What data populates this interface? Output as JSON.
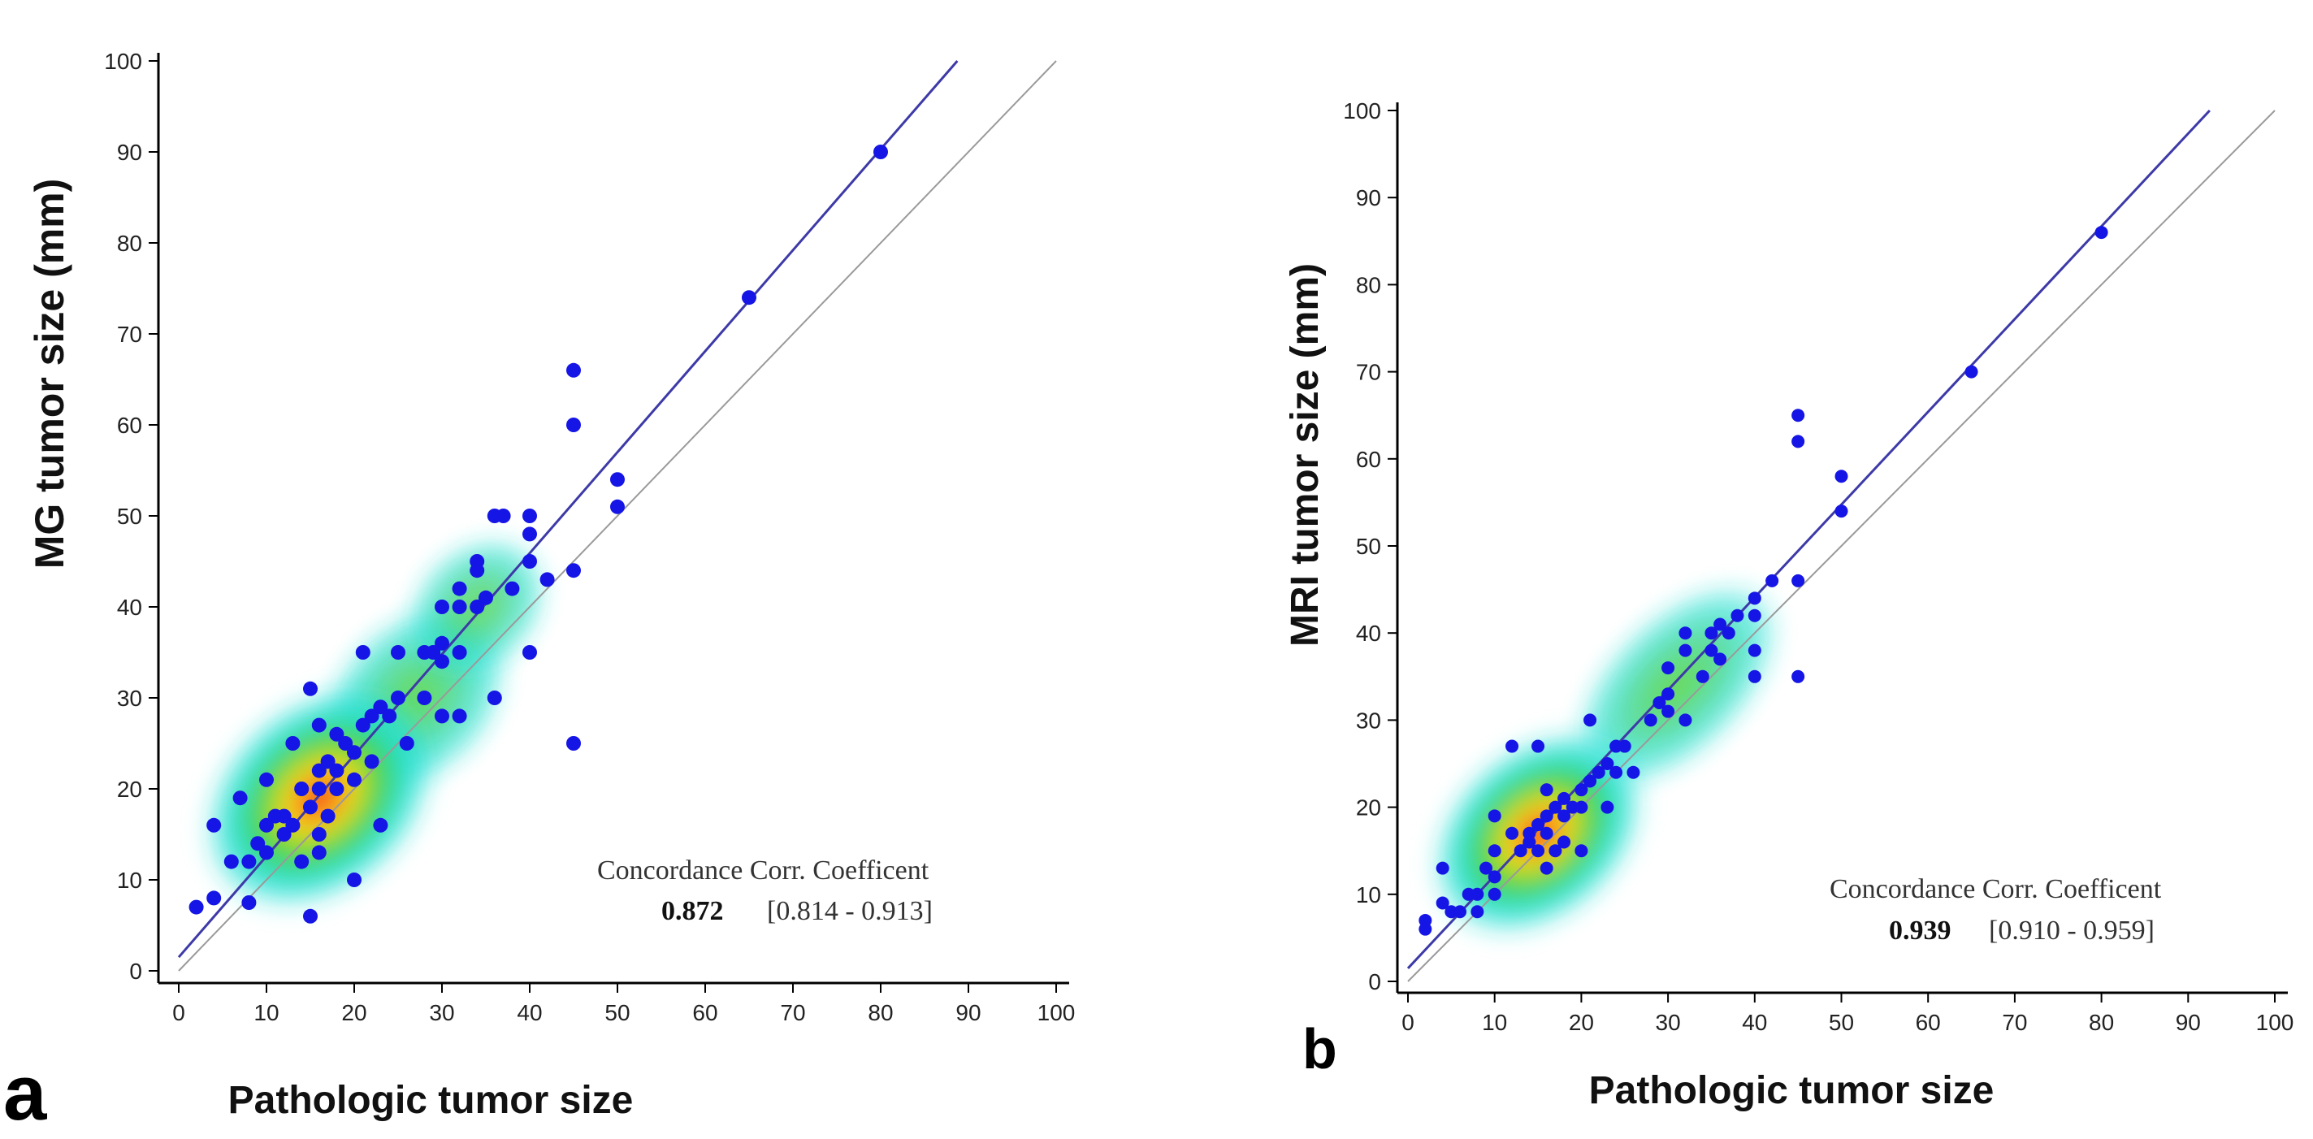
{
  "chart_data": [
    {
      "type": "scatter",
      "panel_label": "a",
      "xlabel": "Pathologic tumor size",
      "ylabel": "MG tumor size (mm)",
      "xlim": [
        0,
        100
      ],
      "ylim": [
        0,
        100
      ],
      "x_ticks": [
        "0",
        "10",
        "20",
        "30",
        "40",
        "50",
        "60",
        "70",
        "80",
        "90",
        "100"
      ],
      "y_ticks": [
        "0",
        "10",
        "20",
        "30",
        "40",
        "50",
        "60",
        "70",
        "80",
        "90",
        "100"
      ],
      "reference_line": "identity",
      "fit_line": {
        "intercept": 1.5,
        "slope": 1.11
      },
      "density_overlay": true,
      "annotation": {
        "title": "Concordance Corr. Coefficent",
        "value": "0.872",
        "ci": "[0.814 - 0.913]"
      },
      "points": [
        [
          2,
          7
        ],
        [
          4,
          8
        ],
        [
          4,
          16
        ],
        [
          6,
          12
        ],
        [
          7,
          19
        ],
        [
          8,
          7.5
        ],
        [
          8,
          12
        ],
        [
          9,
          14
        ],
        [
          10,
          13
        ],
        [
          10,
          16
        ],
        [
          10,
          21
        ],
        [
          11,
          17
        ],
        [
          12,
          15
        ],
        [
          12,
          17
        ],
        [
          13,
          16
        ],
        [
          13,
          25
        ],
        [
          14,
          12
        ],
        [
          14,
          20
        ],
        [
          15,
          31
        ],
        [
          15,
          6
        ],
        [
          15,
          18
        ],
        [
          16,
          13
        ],
        [
          16,
          15
        ],
        [
          16,
          20
        ],
        [
          16,
          22
        ],
        [
          16,
          27
        ],
        [
          17,
          17
        ],
        [
          17,
          23
        ],
        [
          18,
          26
        ],
        [
          18,
          20
        ],
        [
          18,
          22
        ],
        [
          19,
          25
        ],
        [
          20,
          10
        ],
        [
          20,
          24
        ],
        [
          20,
          21
        ],
        [
          21,
          27
        ],
        [
          21,
          35
        ],
        [
          22,
          23
        ],
        [
          22,
          28
        ],
        [
          23,
          16
        ],
        [
          23,
          29
        ],
        [
          24,
          28
        ],
        [
          25,
          30
        ],
        [
          25,
          35
        ],
        [
          26,
          25
        ],
        [
          28,
          30
        ],
        [
          28,
          35
        ],
        [
          29,
          35
        ],
        [
          30,
          28
        ],
        [
          30,
          34
        ],
        [
          30,
          36
        ],
        [
          30,
          40
        ],
        [
          32,
          28
        ],
        [
          32,
          35
        ],
        [
          32,
          40
        ],
        [
          32,
          42
        ],
        [
          34,
          40
        ],
        [
          34,
          44
        ],
        [
          34,
          45
        ],
        [
          35,
          41
        ],
        [
          36,
          50
        ],
        [
          36,
          30
        ],
        [
          37,
          50
        ],
        [
          38,
          42
        ],
        [
          40,
          50
        ],
        [
          40,
          45
        ],
        [
          40,
          48
        ],
        [
          40,
          35
        ],
        [
          42,
          43
        ],
        [
          45,
          25
        ],
        [
          45,
          44
        ],
        [
          45,
          60
        ],
        [
          45,
          66
        ],
        [
          50,
          51
        ],
        [
          50,
          54
        ],
        [
          65,
          74
        ],
        [
          80,
          90
        ]
      ]
    },
    {
      "type": "scatter",
      "panel_label": "b",
      "xlabel": "Pathologic tumor size",
      "ylabel": "MRI tumor size (mm)",
      "xlim": [
        0,
        100
      ],
      "ylim": [
        0,
        100
      ],
      "x_ticks": [
        "0",
        "10",
        "20",
        "30",
        "40",
        "50",
        "60",
        "70",
        "80",
        "90",
        "100"
      ],
      "y_ticks": [
        "0",
        "10",
        "20",
        "30",
        "40",
        "50",
        "60",
        "70",
        "80",
        "90",
        "100"
      ],
      "reference_line": "identity",
      "fit_line": {
        "intercept": 1.5,
        "slope": 1.065
      },
      "density_overlay": true,
      "annotation": {
        "title": "Concordance Corr. Coefficent",
        "value": "0.939",
        "ci": "[0.910 - 0.959]"
      },
      "points": [
        [
          2,
          6
        ],
        [
          2,
          7
        ],
        [
          4,
          9
        ],
        [
          4,
          13
        ],
        [
          5,
          8
        ],
        [
          6,
          8
        ],
        [
          7,
          10
        ],
        [
          8,
          8
        ],
        [
          8,
          10
        ],
        [
          9,
          13
        ],
        [
          10,
          10
        ],
        [
          10,
          12
        ],
        [
          10,
          15
        ],
        [
          10,
          19
        ],
        [
          12,
          17
        ],
        [
          12,
          27
        ],
        [
          13,
          15
        ],
        [
          14,
          16
        ],
        [
          14,
          17
        ],
        [
          15,
          15
        ],
        [
          15,
          18
        ],
        [
          15,
          27
        ],
        [
          16,
          13
        ],
        [
          16,
          17
        ],
        [
          16,
          19
        ],
        [
          16,
          22
        ],
        [
          17,
          15
        ],
        [
          17,
          20
        ],
        [
          18,
          16
        ],
        [
          18,
          19
        ],
        [
          18,
          21
        ],
        [
          19,
          20
        ],
        [
          20,
          15
        ],
        [
          20,
          20
        ],
        [
          20,
          22
        ],
        [
          21,
          23
        ],
        [
          21,
          30
        ],
        [
          22,
          24
        ],
        [
          23,
          20
        ],
        [
          23,
          25
        ],
        [
          24,
          24
        ],
        [
          24,
          27
        ],
        [
          25,
          27
        ],
        [
          26,
          24
        ],
        [
          28,
          30
        ],
        [
          29,
          32
        ],
        [
          30,
          31
        ],
        [
          30,
          33
        ],
        [
          30,
          36
        ],
        [
          32,
          30
        ],
        [
          32,
          38
        ],
        [
          32,
          40
        ],
        [
          34,
          35
        ],
        [
          35,
          38
        ],
        [
          35,
          40
        ],
        [
          36,
          37
        ],
        [
          36,
          41
        ],
        [
          37,
          40
        ],
        [
          38,
          42
        ],
        [
          40,
          35
        ],
        [
          40,
          38
        ],
        [
          40,
          42
        ],
        [
          40,
          44
        ],
        [
          42,
          46
        ],
        [
          45,
          35
        ],
        [
          45,
          46
        ],
        [
          45,
          62
        ],
        [
          45,
          65
        ],
        [
          50,
          54
        ],
        [
          50,
          58
        ],
        [
          65,
          70
        ],
        [
          80,
          86
        ]
      ]
    }
  ]
}
